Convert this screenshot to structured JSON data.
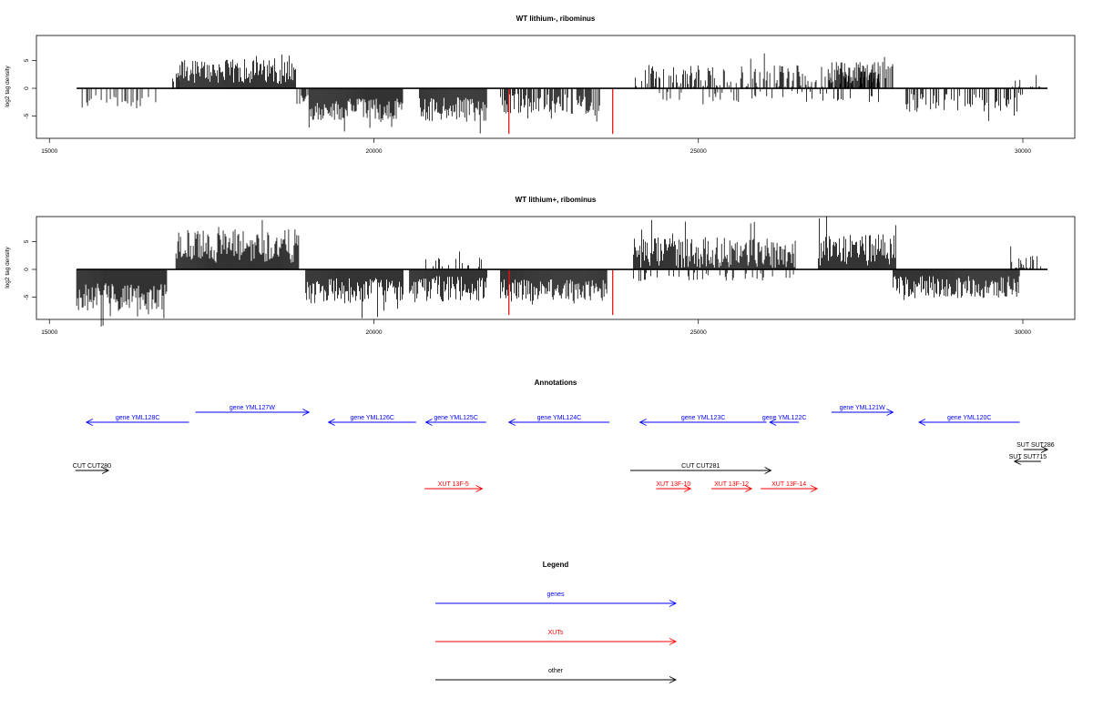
{
  "colors": {
    "axis": "#000000",
    "genes": "#0000ff",
    "xuts": "#ff0000",
    "other": "#000000",
    "highlight": "#ff0000"
  },
  "chart_data": [
    {
      "type": "bar",
      "title": "WT lithium-, ribominus",
      "ylabel": "log2 tag density",
      "xlim": [
        14800,
        30800
      ],
      "ylim": [
        -9,
        9.5
      ],
      "xticks": [
        15000,
        20000,
        25000,
        30000
      ],
      "yticks": [
        -5,
        0,
        5
      ],
      "baseline": [
        15420,
        30380
      ],
      "segments": [
        {
          "start": 15420,
          "end": 16700,
          "sign": -1,
          "mean": 2.3,
          "amp": 1.5,
          "density": 0.3
        },
        {
          "start": 16900,
          "end": 17000,
          "sign": 1,
          "mean": 2.0,
          "amp": 1.0,
          "density": 0.6
        },
        {
          "start": 17000,
          "end": 18800,
          "sign": 1,
          "mean": 3.0,
          "amp": 2.2,
          "density": 1.0
        },
        {
          "start": 18800,
          "end": 19000,
          "sign": -1,
          "mean": 2.0,
          "amp": 1.0,
          "density": 0.5
        },
        {
          "start": 19000,
          "end": 20450,
          "sign": -1,
          "mean": 3.8,
          "amp": 2.0,
          "density": 1.0
        },
        {
          "start": 20700,
          "end": 21750,
          "sign": -1,
          "mean": 3.8,
          "amp": 2.2,
          "density": 1.0
        },
        {
          "start": 21950,
          "end": 23500,
          "sign": -1,
          "mean": 2.8,
          "amp": 1.8,
          "density": 0.7
        },
        {
          "start": 24000,
          "end": 27800,
          "sign": 1,
          "mean": 2.0,
          "amp": 2.2,
          "density": 0.5
        },
        {
          "start": 24400,
          "end": 27800,
          "sign": -1,
          "mean": 1.5,
          "amp": 1.0,
          "density": 0.15
        },
        {
          "start": 27000,
          "end": 28000,
          "sign": 1,
          "mean": 2.8,
          "amp": 2.0,
          "density": 0.9
        },
        {
          "start": 28200,
          "end": 30000,
          "sign": -1,
          "mean": 2.5,
          "amp": 1.8,
          "density": 0.45
        },
        {
          "start": 29800,
          "end": 30300,
          "sign": 1,
          "mean": 1.0,
          "amp": 1.5,
          "density": 0.3
        }
      ],
      "highlights": [
        {
          "x": 22080,
          "y": -8.2
        },
        {
          "x": 23680,
          "y": -8.2
        }
      ]
    },
    {
      "type": "bar",
      "title": "WT lithium+, ribominus",
      "ylabel": "log2 tag density",
      "xlim": [
        14800,
        30800
      ],
      "ylim": [
        -9,
        9.5
      ],
      "xticks": [
        15000,
        20000,
        25000,
        30000
      ],
      "yticks": [
        -5,
        0,
        5
      ],
      "baseline": [
        15420,
        30380
      ],
      "segments": [
        {
          "start": 15420,
          "end": 16820,
          "sign": -1,
          "mean": 5.0,
          "amp": 2.5,
          "density": 1.0
        },
        {
          "start": 16950,
          "end": 18850,
          "sign": 1,
          "mean": 4.2,
          "amp": 3.0,
          "density": 1.0
        },
        {
          "start": 18950,
          "end": 20450,
          "sign": -1,
          "mean": 3.8,
          "amp": 2.3,
          "density": 1.0
        },
        {
          "start": 20550,
          "end": 21750,
          "sign": -1,
          "mean": 3.5,
          "amp": 2.3,
          "density": 1.0
        },
        {
          "start": 20800,
          "end": 21700,
          "sign": 1,
          "mean": 1.2,
          "amp": 1.0,
          "density": 0.2
        },
        {
          "start": 21950,
          "end": 23600,
          "sign": -1,
          "mean": 3.8,
          "amp": 2.0,
          "density": 1.0
        },
        {
          "start": 24000,
          "end": 26500,
          "sign": 1,
          "mean": 3.0,
          "amp": 2.8,
          "density": 1.0
        },
        {
          "start": 24000,
          "end": 26500,
          "sign": -1,
          "mean": 1.3,
          "amp": 0.8,
          "density": 0.2
        },
        {
          "start": 26850,
          "end": 28050,
          "sign": 1,
          "mean": 3.5,
          "amp": 2.8,
          "density": 1.0
        },
        {
          "start": 28000,
          "end": 29950,
          "sign": -1,
          "mean": 3.2,
          "amp": 2.0,
          "density": 1.0
        },
        {
          "start": 29800,
          "end": 30300,
          "sign": 1,
          "mean": 1.0,
          "amp": 1.5,
          "density": 0.3
        }
      ],
      "highlights": [
        {
          "x": 22080,
          "y": -8.2
        },
        {
          "x": 23680,
          "y": -8.2
        }
      ]
    }
  ],
  "annotations": {
    "title": "Annotations",
    "xlim": [
      14800,
      30800
    ],
    "features": [
      {
        "label": "gene YML128C",
        "start": 15570,
        "end": 17150,
        "strand": "-",
        "type": "gene",
        "row": 1
      },
      {
        "label": "gene YML127W",
        "start": 17250,
        "end": 19000,
        "strand": "+",
        "type": "gene",
        "row": 0
      },
      {
        "label": "gene YML126C",
        "start": 19300,
        "end": 20650,
        "strand": "-",
        "type": "gene",
        "row": 1
      },
      {
        "label": "gene YML125C",
        "start": 20800,
        "end": 21730,
        "strand": "-",
        "type": "gene",
        "row": 1
      },
      {
        "label": "gene YML124C",
        "start": 22080,
        "end": 23630,
        "strand": "-",
        "type": "gene",
        "row": 1
      },
      {
        "label": "gene YML123C",
        "start": 24100,
        "end": 26050,
        "strand": "-",
        "type": "gene",
        "row": 1
      },
      {
        "label": "gene YML122C",
        "start": 26100,
        "end": 26550,
        "strand": "-",
        "type": "gene",
        "row": 1
      },
      {
        "label": "gene YML121W",
        "start": 27050,
        "end": 28000,
        "strand": "+",
        "type": "gene",
        "row": 0
      },
      {
        "label": "gene YML120C",
        "start": 28400,
        "end": 29950,
        "strand": "-",
        "type": "gene",
        "row": 1
      },
      {
        "label": "CUT CUT280",
        "start": 15400,
        "end": 15910,
        "strand": "+",
        "type": "other",
        "row": 3
      },
      {
        "label": "CUT CUT281",
        "start": 23950,
        "end": 26120,
        "strand": "+",
        "type": "other",
        "row": 3
      },
      {
        "label": "SUT SUT286",
        "start": 30010,
        "end": 30380,
        "strand": "+",
        "type": "other",
        "row": 2
      },
      {
        "label": "SUT SUT715",
        "start": 29870,
        "end": 30280,
        "strand": "-",
        "type": "other",
        "row": 2.5
      },
      {
        "label": "XUT 13F-5",
        "start": 20780,
        "end": 21670,
        "strand": "+",
        "type": "xut",
        "row": 4
      },
      {
        "label": "XUT 13F-10",
        "start": 24350,
        "end": 24880,
        "strand": "+",
        "type": "xut",
        "row": 4
      },
      {
        "label": "XUT 13F-12",
        "start": 25200,
        "end": 25820,
        "strand": "+",
        "type": "xut",
        "row": 4
      },
      {
        "label": "XUT 13F-14",
        "start": 25960,
        "end": 26830,
        "strand": "+",
        "type": "xut",
        "row": 4
      }
    ]
  },
  "legend": {
    "title": "Legend",
    "items": [
      {
        "label": "genes",
        "type": "gene"
      },
      {
        "label": "XUTs",
        "type": "xut"
      },
      {
        "label": "other",
        "type": "other"
      }
    ]
  }
}
